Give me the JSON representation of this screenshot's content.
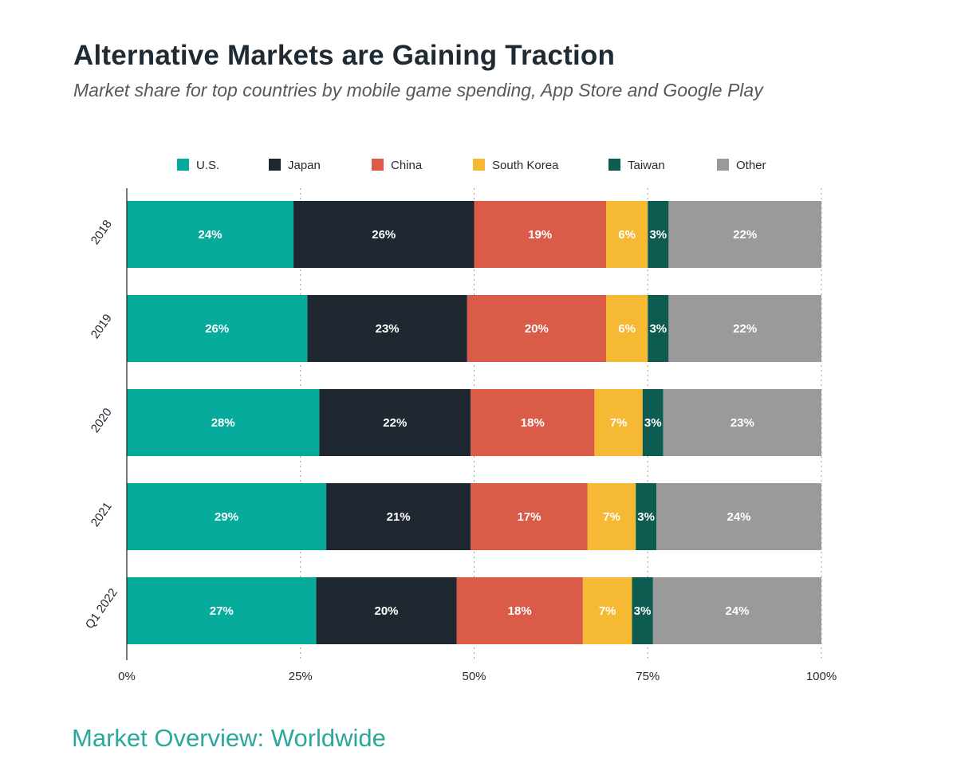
{
  "chart_data": {
    "type": "bar",
    "orientation": "horizontal",
    "stacked": true,
    "title": "Alternative Markets are Gaining Traction",
    "subtitle": "Market share for top countries by mobile game spending, App Store and Google Play",
    "categories": [
      "2018",
      "2019",
      "2020",
      "2021",
      "Q1 2022"
    ],
    "series": [
      {
        "name": "U.S.",
        "color": "#06ab9c",
        "values": [
          24,
          26,
          28,
          29,
          27
        ]
      },
      {
        "name": "Japan",
        "color": "#1f2830",
        "values": [
          26,
          23,
          22,
          21,
          20
        ]
      },
      {
        "name": "China",
        "color": "#db5b49",
        "values": [
          19,
          20,
          18,
          17,
          18
        ]
      },
      {
        "name": "South Korea",
        "color": "#f5b934",
        "values": [
          6,
          6,
          7,
          7,
          7
        ]
      },
      {
        "name": "Taiwan",
        "color": "#0e5b52",
        "values": [
          3,
          3,
          3,
          3,
          3
        ]
      },
      {
        "name": "Other",
        "color": "#9a9a9a",
        "values": [
          22,
          22,
          23,
          24,
          24
        ]
      }
    ],
    "xlim": [
      0,
      100
    ],
    "xticks": [
      "0%",
      "25%",
      "50%",
      "75%",
      "100%"
    ],
    "value_suffix": "%",
    "legend_position": "top",
    "grid": "vertical-dotted"
  },
  "footer": "Market Overview: Worldwide"
}
